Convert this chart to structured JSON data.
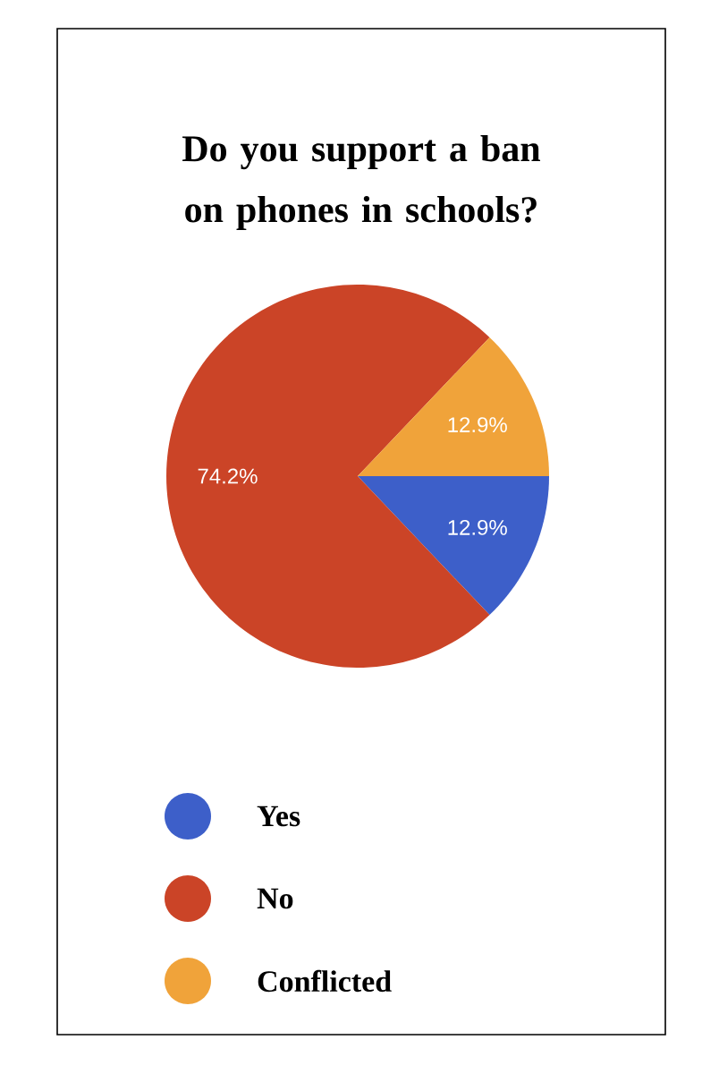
{
  "chart_data": {
    "type": "pie",
    "title": "Do you support a ban on phones in schools?",
    "categories": [
      "Yes",
      "No",
      "Conflicted"
    ],
    "values": [
      12.9,
      74.2,
      12.9
    ],
    "colors": [
      "#3d5fc9",
      "#cb4427",
      "#f0a33a"
    ],
    "value_labels": [
      "12.9%",
      "74.2%",
      "12.9%"
    ],
    "legend": "bottom"
  }
}
